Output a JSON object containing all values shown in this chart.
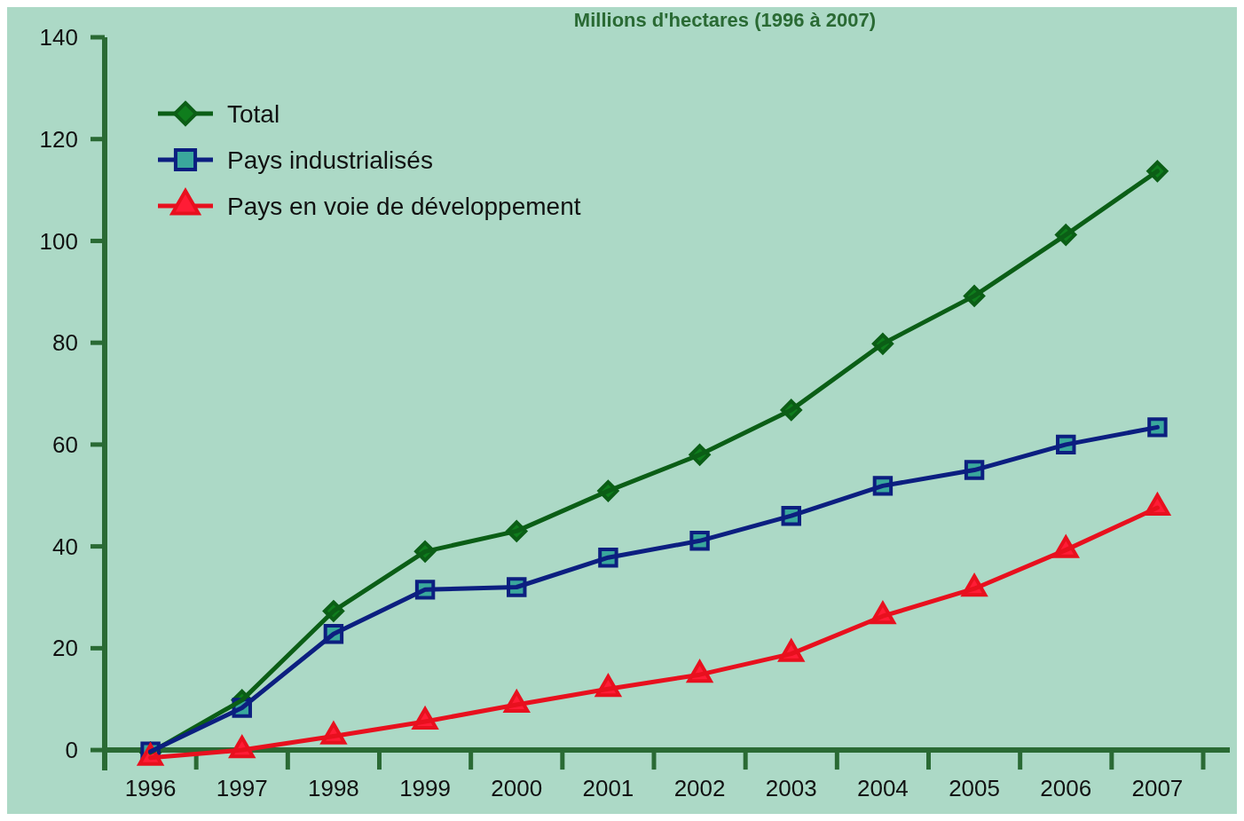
{
  "chart_data": {
    "type": "line",
    "title": "Millions d'hectares (1996 à 2007)",
    "categories": [
      "1996",
      "1997",
      "1998",
      "1999",
      "2000",
      "2001",
      "2002",
      "2003",
      "2004",
      "2005",
      "2006",
      "2007"
    ],
    "series": [
      {
        "name": "Total",
        "color": "#0b5e16",
        "marker": "diamond",
        "values": [
          -0.5,
          9.8,
          27.3,
          39.0,
          43.0,
          50.9,
          58.0,
          66.8,
          79.8,
          89.2,
          101.2,
          113.7
        ]
      },
      {
        "name": "Pays industrialisés",
        "color": "#0c1f80",
        "marker": "square",
        "values": [
          -0.3,
          8.3,
          22.8,
          31.5,
          32.0,
          37.8,
          41.1,
          46.0,
          51.9,
          55.0,
          60.0,
          63.4
        ]
      },
      {
        "name": "Pays en voie de développement",
        "color": "#e8101e",
        "marker": "triangle",
        "values": [
          -1.5,
          0,
          2.7,
          5.6,
          8.9,
          12.0,
          14.8,
          18.9,
          26.3,
          31.7,
          39.3,
          47.6
        ]
      }
    ],
    "ylim": [
      -4,
      140
    ],
    "yticks": [
      0,
      20,
      40,
      60,
      80,
      100,
      120,
      140
    ],
    "grid": false,
    "legend": "top left",
    "line_style": "solid"
  }
}
